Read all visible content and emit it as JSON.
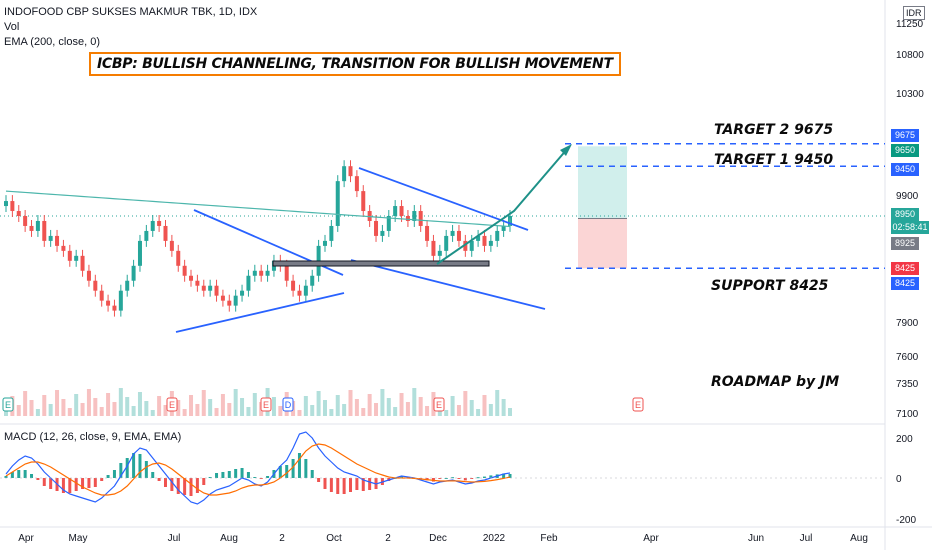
{
  "header": {
    "symbol_line": "INDOFOOD CBP SUKSES MAKMUR TBK, 1D, IDX",
    "vol_label": "Vol",
    "ema_label": "EMA (200, close, 0)",
    "macd_label": "MACD (12, 26, close, 9, EMA, EMA)",
    "currency": "IDR"
  },
  "idea_title": "ICBP: BULLISH CHANNELING, TRANSITION FOR BULLISH MOVEMENT",
  "annotations": {
    "target2": "TARGET 2  9675",
    "target1": "TARGET 1 9450",
    "support": "SUPPORT 8425",
    "roadmap": "ROADMAP by JM"
  },
  "price_badges": {
    "b9675": "9675",
    "b9650": "9650",
    "b9450": "9450",
    "b8950": "8950",
    "countdown": "02:58:41",
    "b8925": "8925",
    "b8425a": "8425",
    "b8425b": "8425"
  },
  "colors": {
    "up": "#26a69a",
    "down": "#ef5350",
    "ema": "#4db6ac",
    "drawing": "#2962ff",
    "arrow": "#1e9188",
    "target_zone": "#d1efec",
    "stop_zone": "#fbd5d5",
    "macd_line": "#2962ff",
    "signal_line": "#ff6d00"
  },
  "chart_data": {
    "type": "candlestick",
    "price_axis_ticks": [
      "11250",
      "10800",
      "10300",
      "9900",
      "9450",
      "8950",
      "8425",
      "7900",
      "7600",
      "7350",
      "7100"
    ],
    "time_axis_ticks": [
      "Apr",
      "May",
      "Jul",
      "Aug",
      "2",
      "Oct",
      "2",
      "Dec",
      "2022",
      "Feb",
      "Apr",
      "Jun",
      "Jul",
      "Aug"
    ],
    "macd_axis_ticks": [
      "200",
      "0",
      "-200"
    ],
    "levels": {
      "target2": 9675,
      "target1": 9450,
      "last": 8950,
      "ema": 8925,
      "support": 8425
    },
    "ylim": [
      7100,
      11250
    ],
    "closes": [
      9100,
      9000,
      8950,
      8850,
      8800,
      8900,
      8700,
      8750,
      8650,
      8600,
      8500,
      8550,
      8400,
      8300,
      8200,
      8100,
      8050,
      8000,
      8200,
      8300,
      8450,
      8700,
      8800,
      8900,
      8850,
      8700,
      8600,
      8450,
      8350,
      8300,
      8250,
      8200,
      8250,
      8150,
      8100,
      8050,
      8150,
      8200,
      8350,
      8400,
      8350,
      8400,
      8500,
      8450,
      8300,
      8200,
      8150,
      8250,
      8350,
      8650,
      8700,
      8850,
      9300,
      9450,
      9350,
      9200,
      9000,
      8900,
      8750,
      8800,
      8950,
      9050,
      8950,
      8900,
      9000,
      8850,
      8700,
      8550,
      8600,
      8750,
      8800,
      8700,
      8600,
      8700,
      8750,
      8650,
      8700,
      8800,
      8850,
      8950
    ],
    "macd": [
      20,
      60,
      90,
      110,
      100,
      70,
      30,
      0,
      -30,
      -60,
      -80,
      -90,
      -100,
      -110,
      -120,
      -100,
      -70,
      -40,
      10,
      60,
      120,
      150,
      140,
      100,
      60,
      20,
      -20,
      -60,
      -90,
      -120,
      -130,
      -110,
      -80,
      -60,
      -50,
      -40,
      -20,
      0,
      -10,
      -30,
      -40,
      -20,
      20,
      60,
      90,
      150,
      220,
      230,
      200,
      150,
      110,
      80,
      50,
      30,
      20,
      10,
      -10,
      -20,
      -30,
      -20,
      -10,
      0,
      10,
      5,
      0,
      -10,
      -20,
      -30,
      -20,
      -15,
      -10,
      -20,
      -30,
      -25,
      -15,
      -10,
      0,
      10,
      20,
      25
    ],
    "signal": [
      10,
      30,
      50,
      70,
      80,
      80,
      70,
      55,
      35,
      15,
      -5,
      -25,
      -45,
      -60,
      -75,
      -85,
      -85,
      -80,
      -65,
      -40,
      -5,
      30,
      55,
      70,
      75,
      65,
      45,
      20,
      -5,
      -30,
      -55,
      -75,
      -85,
      -85,
      -80,
      -75,
      -65,
      -50,
      -40,
      -35,
      -35,
      -30,
      -20,
      0,
      25,
      55,
      95,
      135,
      160,
      170,
      165,
      150,
      130,
      110,
      90,
      70,
      55,
      40,
      25,
      15,
      5,
      0,
      0,
      0,
      -2,
      -5,
      -8,
      -12,
      -15,
      -15,
      -14,
      -15,
      -18,
      -20,
      -19,
      -17,
      -13,
      -8,
      -2,
      5
    ]
  }
}
